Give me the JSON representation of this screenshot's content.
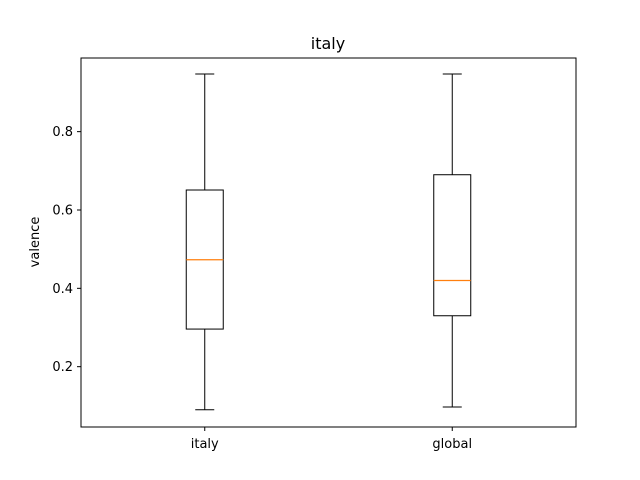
{
  "chart_data": {
    "type": "boxplot",
    "title": "italy",
    "xlabel": "",
    "ylabel": "valence",
    "ylim": [
      0.046,
      0.988
    ],
    "yticks": [
      0.2,
      0.4,
      0.6,
      0.8
    ],
    "ytick_labels": [
      "0.2",
      "0.4",
      "0.6",
      "0.8"
    ],
    "categories": [
      "italy",
      "global"
    ],
    "boxes": [
      {
        "label": "italy",
        "whisker_low": 0.09,
        "q1": 0.296,
        "median": 0.473,
        "q3": 0.651,
        "whisker_high": 0.947
      },
      {
        "label": "global",
        "whisker_low": 0.097,
        "q1": 0.33,
        "median": 0.42,
        "q3": 0.69,
        "whisker_high": 0.947
      }
    ],
    "colors": {
      "box": "#000000",
      "median": "#ff7f0e"
    },
    "grid": false,
    "legend": false
  }
}
